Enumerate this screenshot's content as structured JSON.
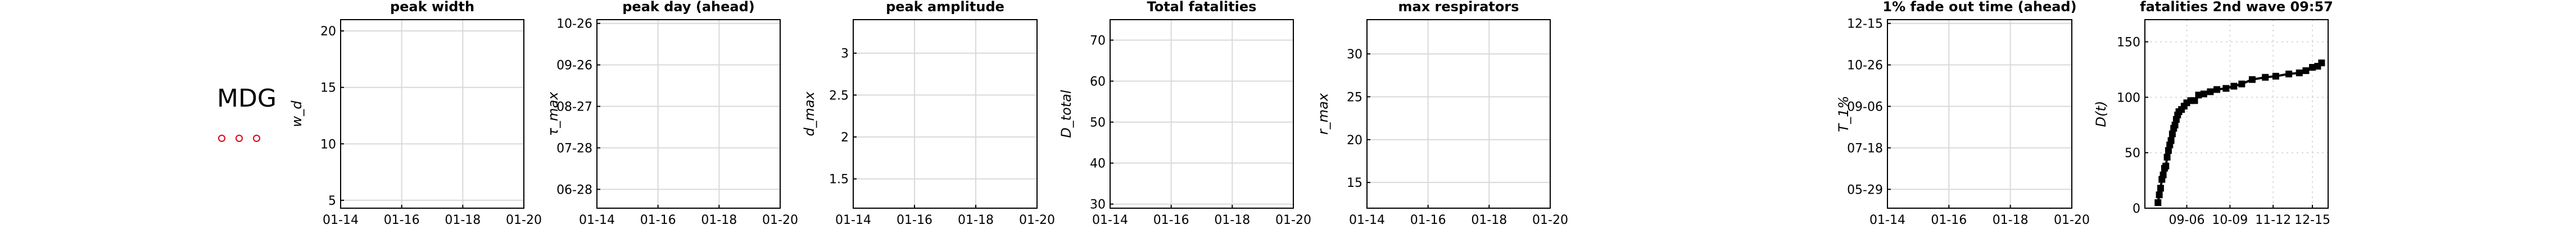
{
  "country_label": "MDG",
  "legend_markers": 3,
  "colors": {
    "axis": "#000000",
    "grid": "#d9d9d9",
    "marker": "#e0001a",
    "data": "#000000"
  },
  "chart_data": [
    {
      "type": "line",
      "title": "peak width",
      "ylabel": "w_d",
      "x_ticks": [
        "01-14",
        "01-16",
        "01-18",
        "01-20"
      ],
      "y_ticks": [
        "5",
        "10",
        "15",
        "20"
      ],
      "ylim": [
        4.3,
        21
      ],
      "grid": true,
      "series": []
    },
    {
      "type": "line",
      "title": "peak day (ahead)",
      "ylabel": "τ_max",
      "x_ticks": [
        "01-14",
        "01-16",
        "01-18",
        "01-20"
      ],
      "y_ticks": [
        "06-28",
        "07-28",
        "08-27",
        "09-26",
        "10-26"
      ],
      "ylim": [
        0,
        10
      ],
      "grid": true,
      "series": []
    },
    {
      "type": "line",
      "title": "peak amplitude",
      "ylabel": "d_max",
      "x_ticks": [
        "01-14",
        "01-16",
        "01-18",
        "01-20"
      ],
      "y_ticks": [
        "1.5",
        "2",
        "2.5",
        "3"
      ],
      "ylim": [
        1.15,
        3.4
      ],
      "grid": true,
      "series": []
    },
    {
      "type": "line",
      "title": "Total fatalities",
      "ylabel": "D_total",
      "x_ticks": [
        "01-14",
        "01-16",
        "01-18",
        "01-20"
      ],
      "y_ticks": [
        "30",
        "40",
        "50",
        "60",
        "70"
      ],
      "ylim": [
        29,
        75
      ],
      "grid": true,
      "series": []
    },
    {
      "type": "line",
      "title": "max respirators",
      "ylabel": "r_max",
      "x_ticks": [
        "01-14",
        "01-16",
        "01-18",
        "01-20"
      ],
      "y_ticks": [
        "15",
        "20",
        "25",
        "30"
      ],
      "ylim": [
        12,
        34
      ],
      "grid": true,
      "series": []
    },
    {
      "type": "line",
      "title": "1% fade out time (ahead)",
      "ylabel": "T_1%",
      "x_ticks": [
        "01-14",
        "01-16",
        "01-18",
        "01-20"
      ],
      "y_ticks": [
        "05-29",
        "07-18",
        "09-06",
        "10-26",
        "12-15"
      ],
      "ylim": [
        0,
        10
      ],
      "grid": true,
      "series": []
    },
    {
      "type": "line",
      "title": "fatalities 2nd wave 09:57",
      "ylabel": "D(t)",
      "x_ticks": [
        "09-06",
        "10-09",
        "11-12",
        "12-15"
      ],
      "y_ticks": [
        "0",
        "50",
        "100",
        "150"
      ],
      "ylim": [
        0,
        170
      ],
      "grid": true,
      "series": [
        {
          "x": [
            0,
            1,
            2,
            3,
            4,
            5,
            6,
            7,
            8,
            9,
            10,
            11,
            12,
            13,
            14,
            15,
            16,
            18,
            20,
            22,
            25,
            28,
            31,
            35,
            40,
            45,
            52,
            58,
            64,
            72,
            82,
            90,
            100,
            108,
            113,
            118,
            122,
            125
          ],
          "y": [
            5,
            12,
            18,
            26,
            30,
            36,
            38,
            46,
            52,
            57,
            61,
            67,
            72,
            75,
            80,
            84,
            87,
            89,
            92,
            95,
            97,
            97,
            102,
            103,
            105,
            107,
            108,
            110,
            112,
            116,
            118,
            119,
            121,
            122,
            124,
            127,
            128,
            131
          ]
        }
      ]
    }
  ]
}
